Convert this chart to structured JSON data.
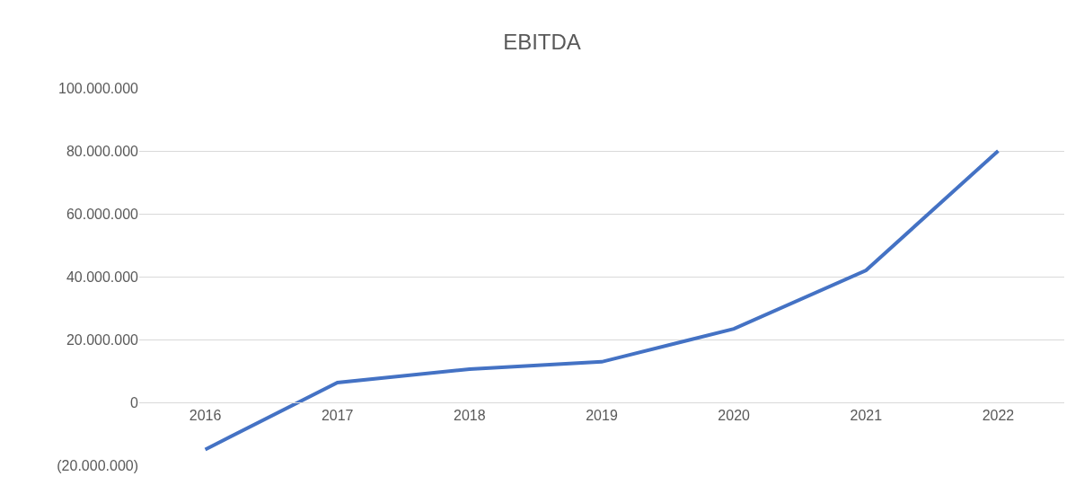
{
  "chart_data": {
    "type": "line",
    "title": "EBITDA",
    "categories": [
      "2016",
      "2017",
      "2018",
      "2019",
      "2020",
      "2021",
      "2022"
    ],
    "series": [
      {
        "color": "#4472c4",
        "values": [
          -15000000,
          6300000,
          10600000,
          12900000,
          23400000,
          42000000,
          80000000
        ]
      }
    ],
    "ylim": [
      -20000000,
      100000000
    ],
    "yticks": [
      {
        "value": -20000000,
        "label": "(20.000.000)"
      },
      0,
      {
        "value": 20000000,
        "label": "20.000.000"
      },
      {
        "value": 40000000,
        "label": "40.000.000"
      },
      {
        "value": 60000000,
        "label": "60.000.000"
      },
      {
        "value": 80000000,
        "label": "80.000.000"
      },
      {
        "value": 100000000,
        "label": "100.000.000"
      }
    ],
    "grid": "y",
    "legend": false,
    "marker": "none",
    "line_style": "solid"
  }
}
